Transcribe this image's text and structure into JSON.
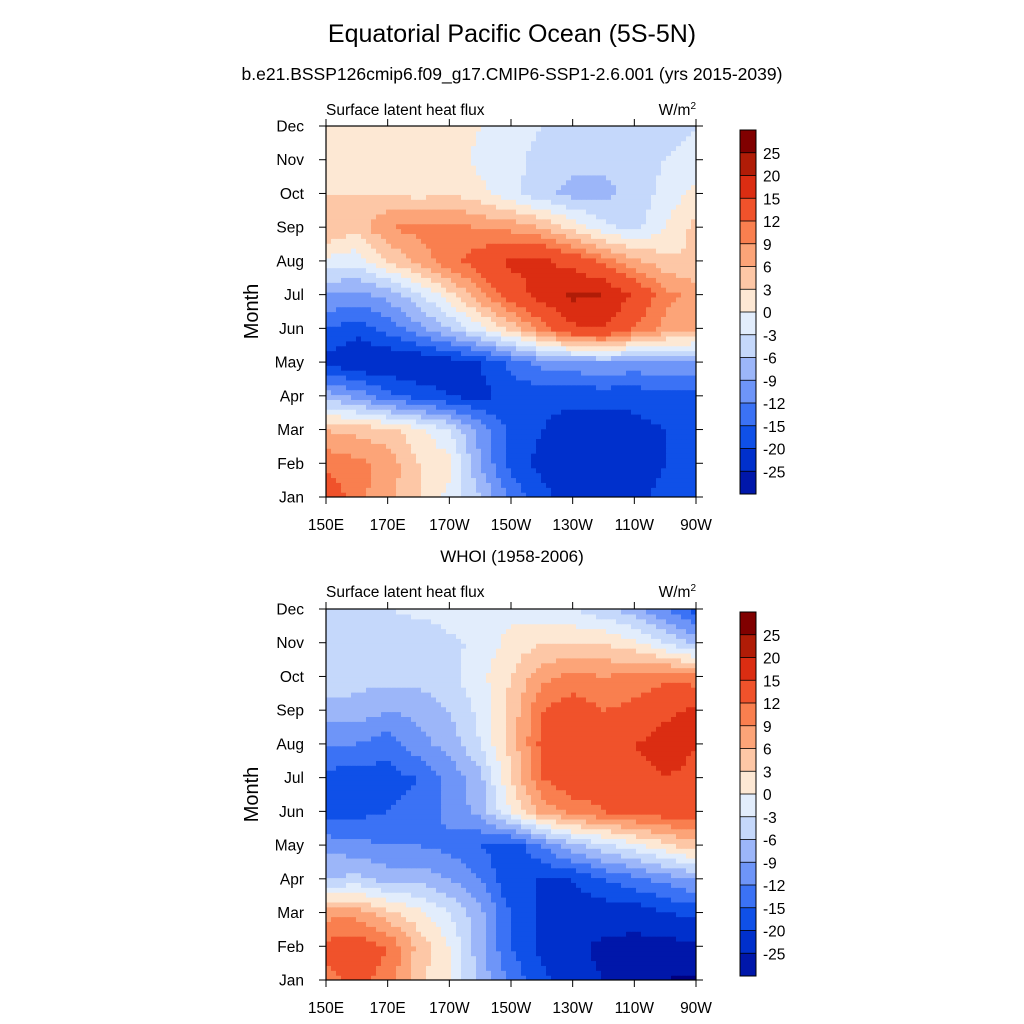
{
  "title": "Equatorial Pacific Ocean (5S-5N)",
  "subtitle": "b.e21.BSSP126cmip6.f09_g17.CMIP6-SSP1-2.6.001 (yrs 2015-2039)",
  "panel2_title": "WHOI (1958-2006)",
  "colors": [
    "#00007f",
    "#0017aa",
    "#0030cc",
    "#0f50e8",
    "#3b72f5",
    "#6e95f8",
    "#9cb6f9",
    "#c5d8fb",
    "#e2edfc",
    "#fde8d4",
    "#fdc7a6",
    "#fca478",
    "#f97f4f",
    "#f0522b",
    "#db2d12",
    "#b01c07",
    "#800000"
  ],
  "chart_data": [
    {
      "type": "heatmap",
      "left_label": "Surface latent heat flux",
      "right_label": "W/m",
      "right_label_sup": "2",
      "ylabel": "Month",
      "x_ticks": [
        "150E",
        "170E",
        "170W",
        "150W",
        "130W",
        "110W",
        "90W"
      ],
      "y_ticks": [
        "Jan",
        "Feb",
        "Mar",
        "Apr",
        "May",
        "Jun",
        "Jul",
        "Aug",
        "Sep",
        "Oct",
        "Nov",
        "Dec"
      ],
      "levels": [
        "-25",
        "-20",
        "-15",
        "-12",
        "-9",
        "-6",
        "-3",
        "0",
        "3",
        "6",
        "9",
        "12",
        "15",
        "20",
        "25"
      ],
      "x_range": [
        150,
        270
      ],
      "rows": [
        [
          18,
          13,
          10,
          6,
          2,
          -3,
          -10,
          -14,
          -17,
          -17,
          -16,
          -14,
          -12
        ],
        [
          14,
          13,
          11,
          6,
          4,
          -6,
          -13,
          -16,
          -17,
          -17,
          -17,
          -15,
          -14
        ],
        [
          9,
          8,
          7,
          4,
          0,
          -7,
          -13,
          -15,
          -17,
          -17,
          -16,
          -15,
          -14
        ],
        [
          -4,
          -7,
          -11,
          -13,
          -15,
          -16,
          -14,
          -14,
          -14,
          -14,
          -14,
          -13,
          -13
        ],
        [
          -16,
          -18,
          -18,
          -18,
          -17,
          -15,
          -11,
          -8,
          -7,
          -6,
          -7,
          -6,
          -6
        ],
        [
          -12,
          -14,
          -11,
          -7,
          -3,
          2,
          7,
          13,
          19,
          20,
          15,
          11,
          10
        ],
        [
          -6,
          -7,
          -5,
          -1,
          5,
          11,
          17,
          22,
          26,
          25,
          19,
          13,
          11
        ],
        [
          2,
          1,
          6,
          10,
          14,
          17,
          21,
          21,
          18,
          14,
          10,
          7,
          6
        ],
        [
          9,
          7,
          12,
          13,
          13,
          12,
          11,
          9,
          5,
          1,
          -1,
          3,
          7
        ],
        [
          6,
          6,
          6,
          5,
          6,
          4,
          1,
          -2,
          -4,
          -4,
          -2,
          1,
          4
        ],
        [
          4,
          4,
          5,
          4,
          5,
          2,
          1,
          -1,
          -2,
          -2,
          -1,
          0,
          1
        ],
        [
          4,
          5,
          6,
          5,
          5,
          3,
          1,
          0,
          -1,
          -1,
          -1,
          -1,
          0
        ]
      ]
    },
    {
      "type": "heatmap",
      "left_label": "Surface latent heat flux",
      "right_label": "W/m",
      "right_label_sup": "2",
      "ylabel": "Month",
      "x_ticks": [
        "150E",
        "170E",
        "170W",
        "150W",
        "130W",
        "110W",
        "90W"
      ],
      "y_ticks": [
        "Jan",
        "Feb",
        "Mar",
        "Apr",
        "May",
        "Jun",
        "Jul",
        "Aug",
        "Sep",
        "Oct",
        "Nov",
        "Dec"
      ],
      "levels": [
        "-25",
        "-20",
        "-15",
        "-12",
        "-9",
        "-6",
        "-3",
        "0",
        "3",
        "6",
        "9",
        "12",
        "15",
        "20",
        "25"
      ],
      "x_range": [
        150,
        270
      ],
      "rows": [
        [
          14,
          16,
          14,
          7,
          3,
          -4,
          -10,
          -14,
          -18,
          -20,
          -22,
          -25,
          -26
        ],
        [
          16,
          17,
          15,
          8,
          3,
          -5,
          -12,
          -16,
          -19,
          -21,
          -22,
          -22,
          -21
        ],
        [
          11,
          11,
          7,
          4,
          0,
          -5,
          -12,
          -16,
          -17,
          -17,
          -17,
          -15,
          -14
        ],
        [
          -3,
          -2,
          -4,
          -4,
          -6,
          -9,
          -15,
          -15,
          -15,
          -12,
          -10,
          -8,
          -6
        ],
        [
          -7,
          -8,
          -9,
          -9,
          -10,
          -12,
          -14,
          -9,
          -4,
          -1,
          2,
          5,
          8
        ],
        [
          -14,
          -13,
          -12,
          -11,
          -8,
          -5,
          3,
          10,
          13,
          15,
          16,
          17,
          17
        ],
        [
          -13,
          -14,
          -13,
          -12,
          -8,
          -4,
          6,
          15,
          18,
          16,
          18,
          20,
          19
        ],
        [
          -9,
          -9,
          -11,
          -7,
          -5,
          0,
          7,
          16,
          20,
          18,
          20,
          22,
          20
        ],
        [
          -4,
          -4,
          -6,
          -5,
          -3,
          1,
          7,
          15,
          17,
          15,
          16,
          19,
          21
        ],
        [
          -1,
          -2,
          -2,
          -2,
          -1,
          2,
          6,
          11,
          13,
          12,
          13,
          14,
          13
        ],
        [
          -3,
          -3,
          -3,
          -3,
          -1,
          1,
          4,
          6,
          6,
          6,
          4,
          0,
          -4
        ],
        [
          -1,
          -1,
          0,
          1,
          2,
          2,
          2,
          1,
          0,
          -2,
          -5,
          -9,
          -13
        ]
      ]
    }
  ]
}
